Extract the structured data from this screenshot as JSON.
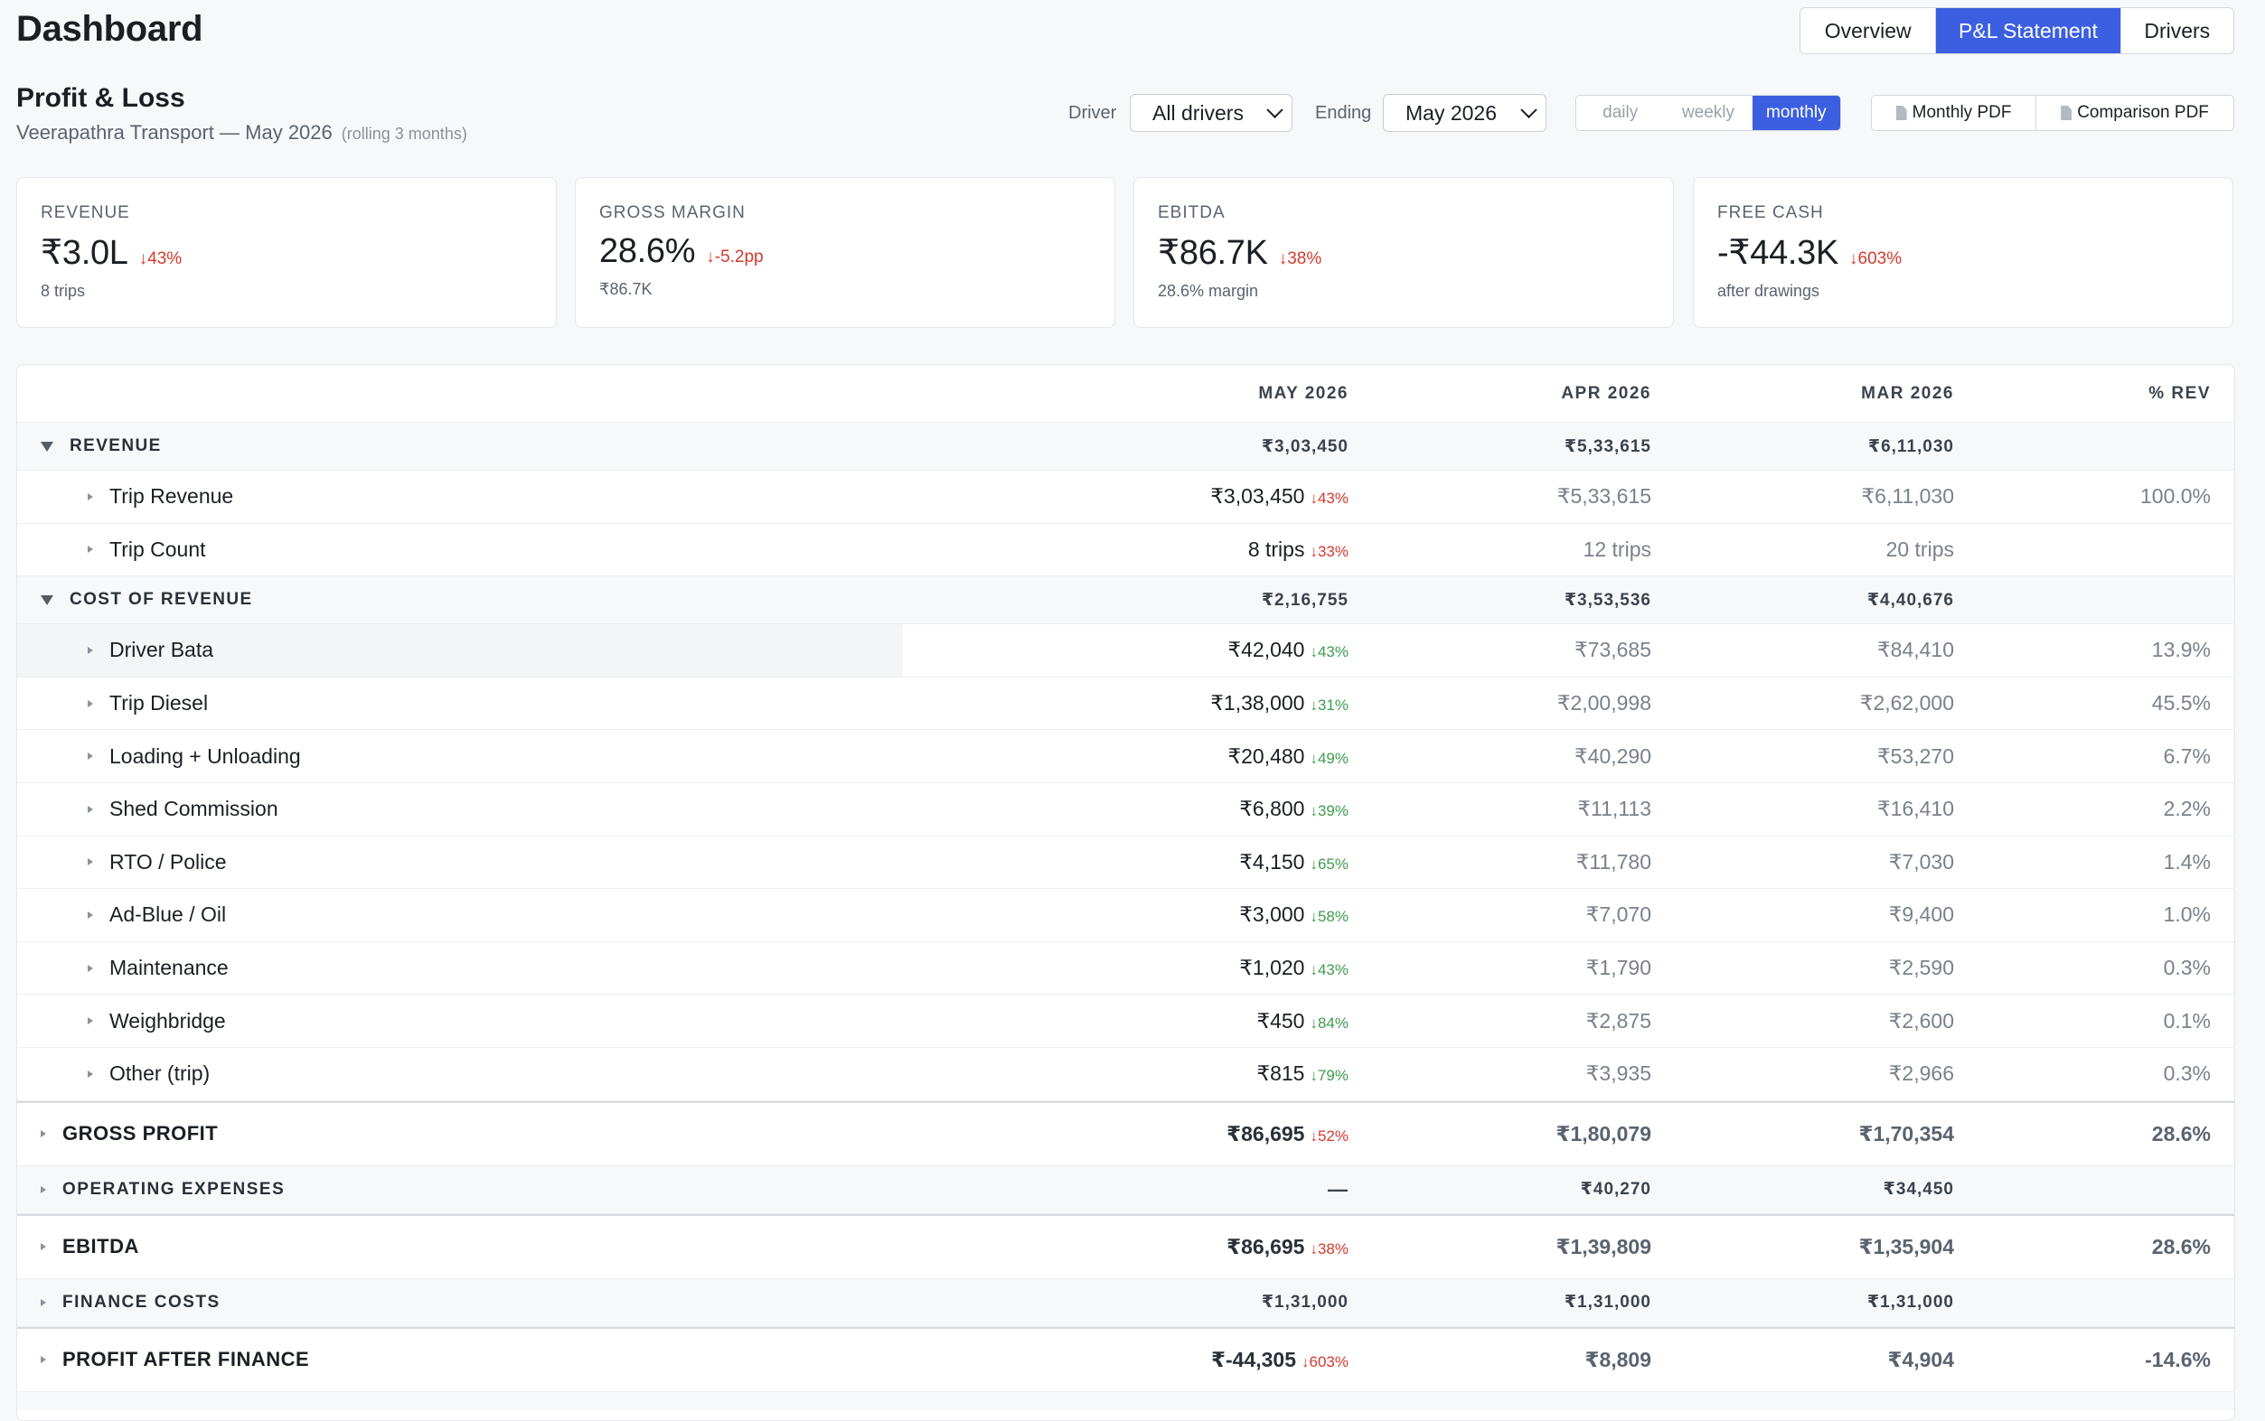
{
  "header": {
    "title": "Dashboard",
    "tabs": [
      {
        "label": "Overview",
        "active": false
      },
      {
        "label": "P&L Statement",
        "active": true
      },
      {
        "label": "Drivers",
        "active": false
      }
    ]
  },
  "section": {
    "title": "Profit & Loss",
    "subtitle": "Veerapathra Transport — May 2026",
    "note": "(rolling 3 months)"
  },
  "filters": {
    "driver_label": "Driver",
    "driver_value": "All drivers",
    "ending_label": "Ending",
    "ending_value": "May 2026",
    "granularity": [
      {
        "label": "daily",
        "active": false
      },
      {
        "label": "weekly",
        "active": false
      },
      {
        "label": "monthly",
        "active": true
      }
    ],
    "pdf_buttons": [
      "Monthly PDF",
      "Comparison PDF"
    ]
  },
  "kpis": [
    {
      "label": "REVENUE",
      "value": "₹3.0L",
      "delta": "↓43%",
      "sub": "8 trips"
    },
    {
      "label": "GROSS MARGIN",
      "value": "28.6%",
      "delta": "↓-5.2pp",
      "sub": "₹86.7K"
    },
    {
      "label": "EBITDA",
      "value": "₹86.7K",
      "delta": "↓38%",
      "sub": "28.6% margin"
    },
    {
      "label": "FREE CASH",
      "value": "-₹44.3K",
      "delta": "↓603%",
      "sub": "after drawings"
    }
  ],
  "table": {
    "columns": [
      "MAY 2026",
      "APR 2026",
      "MAR 2026",
      "% REV"
    ],
    "revenue": {
      "label": "REVENUE",
      "totals": [
        "₹3,03,450",
        "₹5,33,615",
        "₹6,11,030"
      ],
      "lines": [
        {
          "name": "Trip Revenue",
          "may": "₹3,03,450",
          "delta": "↓43%",
          "apr": "₹5,33,615",
          "mar": "₹6,11,030",
          "pct": "100.0%"
        },
        {
          "name": "Trip Count",
          "may": "8 trips",
          "delta": "↓33%",
          "apr": "12 trips",
          "mar": "20 trips",
          "pct": ""
        }
      ]
    },
    "cost_of_revenue": {
      "label": "COST OF REVENUE",
      "totals": [
        "₹2,16,755",
        "₹3,53,536",
        "₹4,40,676"
      ],
      "lines": [
        {
          "name": "Driver Bata",
          "may": "₹42,040",
          "delta": "↓43%",
          "apr": "₹73,685",
          "mar": "₹84,410",
          "pct": "13.9%"
        },
        {
          "name": "Trip Diesel",
          "may": "₹1,38,000",
          "delta": "↓31%",
          "apr": "₹2,00,998",
          "mar": "₹2,62,000",
          "pct": "45.5%"
        },
        {
          "name": "Loading + Unloading",
          "may": "₹20,480",
          "delta": "↓49%",
          "apr": "₹40,290",
          "mar": "₹53,270",
          "pct": "6.7%"
        },
        {
          "name": "Shed Commission",
          "may": "₹6,800",
          "delta": "↓39%",
          "apr": "₹11,113",
          "mar": "₹16,410",
          "pct": "2.2%"
        },
        {
          "name": "RTO / Police",
          "may": "₹4,150",
          "delta": "↓65%",
          "apr": "₹11,780",
          "mar": "₹7,030",
          "pct": "1.4%"
        },
        {
          "name": "Ad-Blue / Oil",
          "may": "₹3,000",
          "delta": "↓58%",
          "apr": "₹7,070",
          "mar": "₹9,400",
          "pct": "1.0%"
        },
        {
          "name": "Maintenance",
          "may": "₹1,020",
          "delta": "↓43%",
          "apr": "₹1,790",
          "mar": "₹2,590",
          "pct": "0.3%"
        },
        {
          "name": "Weighbridge",
          "may": "₹450",
          "delta": "↓84%",
          "apr": "₹2,875",
          "mar": "₹2,600",
          "pct": "0.1%"
        },
        {
          "name": "Other (trip)",
          "may": "₹815",
          "delta": "↓79%",
          "apr": "₹3,935",
          "mar": "₹2,966",
          "pct": "0.3%"
        }
      ]
    },
    "gross_profit": {
      "label": "GROSS PROFIT",
      "may": "₹86,695",
      "delta": "↓52%",
      "apr": "₹1,80,079",
      "mar": "₹1,70,354",
      "pct": "28.6%"
    },
    "operating_expenses": {
      "label": "OPERATING EXPENSES",
      "may": "—",
      "apr": "₹40,270",
      "mar": "₹34,450"
    },
    "ebitda": {
      "label": "EBITDA",
      "may": "₹86,695",
      "delta": "↓38%",
      "apr": "₹1,39,809",
      "mar": "₹1,35,904",
      "pct": "28.6%"
    },
    "finance_costs": {
      "label": "FINANCE COSTS",
      "may": "₹1,31,000",
      "apr": "₹1,31,000",
      "mar": "₹1,31,000"
    },
    "profit_after_finance": {
      "label": "PROFIT AFTER FINANCE",
      "may": "₹-44,305",
      "delta": "↓603%",
      "apr": "₹8,809",
      "mar": "₹4,904",
      "pct": "-14.6%"
    }
  },
  "colors": {
    "accent": "#3b5fe0",
    "negative": "#d23a2f",
    "positive": "#3e9b4f"
  }
}
